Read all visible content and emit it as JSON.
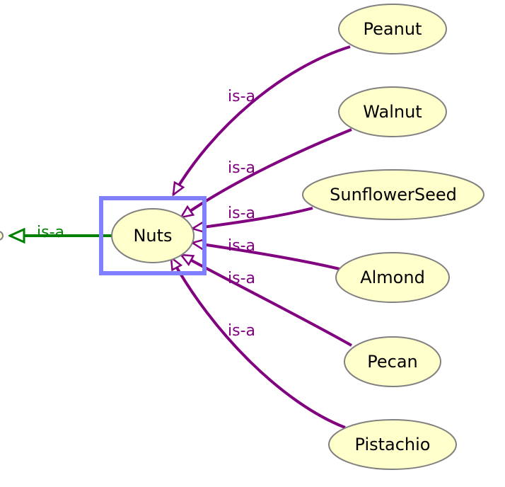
{
  "colors": {
    "node_fill": "#FFFFCC",
    "node_stroke": "#808080",
    "child_edge": "#800080",
    "parent_edge": "#008000",
    "selection": "#8080FF"
  },
  "center_node": {
    "label": "Nuts"
  },
  "parent_edge": {
    "label": "is-a"
  },
  "child_nodes": [
    {
      "label": "Peanut",
      "edge_label": "is-a"
    },
    {
      "label": "Walnut",
      "edge_label": "is-a"
    },
    {
      "label": "SunflowerSeed",
      "edge_label": "is-a"
    },
    {
      "label": "Almond",
      "edge_label": "is-a"
    },
    {
      "label": "Pecan",
      "edge_label": "is-a"
    },
    {
      "label": "Pistachio",
      "edge_label": "is-a"
    }
  ]
}
